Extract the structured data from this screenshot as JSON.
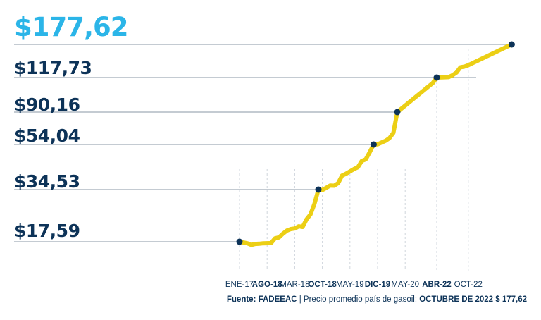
{
  "chart_data": {
    "type": "line",
    "y_unit": "$",
    "highlight_label": "$177,62",
    "levels": [
      {
        "label": "$117,73",
        "value": 117.73,
        "x_index": 60
      },
      {
        "label": "$90,16",
        "value": 90.16,
        "x_index": 40
      },
      {
        "label": "$54,04",
        "value": 54.04,
        "x_index": 34
      },
      {
        "label": "$34,53",
        "value": 34.53,
        "x_index": 21
      },
      {
        "label": "$17,59",
        "value": 17.59,
        "x_index": 0
      }
    ],
    "highlight_level": {
      "value": 177.62,
      "x_index": 69
    },
    "tick_labels": [
      {
        "label": "ENE-17",
        "x_index": 0,
        "bold": false
      },
      {
        "label": "AGO-18",
        "x_index": 7,
        "bold": true
      },
      {
        "label": "MAR-18",
        "x_index": 14,
        "bold": false
      },
      {
        "label": "OCT-18",
        "x_index": 21,
        "bold": true
      },
      {
        "label": "MAY-19",
        "x_index": 28,
        "bold": false
      },
      {
        "label": "DIC-19",
        "x_index": 35,
        "bold": true
      },
      {
        "label": "MAY-20",
        "x_index": 42,
        "bold": false
      },
      {
        "label": "ABR-22",
        "x_index": 50,
        "bold": true
      },
      {
        "label": "OCT-22",
        "x_index": 58,
        "bold": false
      }
    ],
    "series": [
      {
        "points": [
          [
            0,
            17.59
          ],
          [
            2,
            16.9
          ],
          [
            3,
            16.2
          ],
          [
            4,
            16.6
          ],
          [
            5,
            16.7
          ],
          [
            6,
            16.9
          ],
          [
            8,
            17.0
          ],
          [
            9,
            18.7
          ],
          [
            10,
            19.0
          ],
          [
            11,
            20.2
          ],
          [
            12,
            21.2
          ],
          [
            13,
            21.7
          ],
          [
            14,
            21.9
          ],
          [
            15,
            22.6
          ],
          [
            16,
            22.4
          ],
          [
            17,
            24.9
          ],
          [
            18,
            26.5
          ],
          [
            19,
            29.9
          ],
          [
            20,
            34.53
          ],
          [
            21,
            34.4
          ],
          [
            22,
            35.3
          ],
          [
            23,
            36.3
          ],
          [
            24,
            36.2
          ],
          [
            25,
            37.3
          ],
          [
            26,
            40.6
          ],
          [
            27,
            41.4
          ],
          [
            28,
            42.4
          ],
          [
            29,
            43.4
          ],
          [
            30,
            44.2
          ],
          [
            31,
            46.9
          ],
          [
            32,
            47.6
          ],
          [
            33,
            50.7
          ],
          [
            34,
            54.04
          ],
          [
            35,
            54.3
          ],
          [
            36,
            56.2
          ],
          [
            37,
            58.1
          ],
          [
            38,
            61.1
          ],
          [
            39,
            66.9
          ],
          [
            40,
            90.16
          ],
          [
            45,
            103.1
          ],
          [
            49,
            113.4
          ],
          [
            50,
            117.73
          ],
          [
            52,
            118.2
          ],
          [
            53,
            118.5
          ],
          [
            54,
            121.9
          ],
          [
            55,
            126.8
          ],
          [
            56,
            136.3
          ],
          [
            57,
            137.5
          ],
          [
            58,
            140.1
          ],
          [
            69,
            177.62
          ]
        ],
        "color": "#eccf15"
      }
    ],
    "markers": [
      {
        "x_index": 0,
        "value": 17.59
      },
      {
        "x_index": 20,
        "value": 34.53
      },
      {
        "x_index": 34,
        "value": 54.04
      },
      {
        "x_index": 40,
        "value": 90.16
      },
      {
        "x_index": 50,
        "value": 117.73
      },
      {
        "x_index": 69,
        "value": 177.62
      }
    ],
    "source": {
      "prefix": "Fuente: FADEEAC",
      "middle": " | Precio promedio país de gasoil: ",
      "suffix": "OCTUBRE DE 2022 $ 177,62"
    },
    "colors": {
      "line": "#eccf15",
      "marker": "#0d3358",
      "text": "#0d3358",
      "highlight": "#2bb5e8",
      "guide": "#8a97a6"
    }
  }
}
